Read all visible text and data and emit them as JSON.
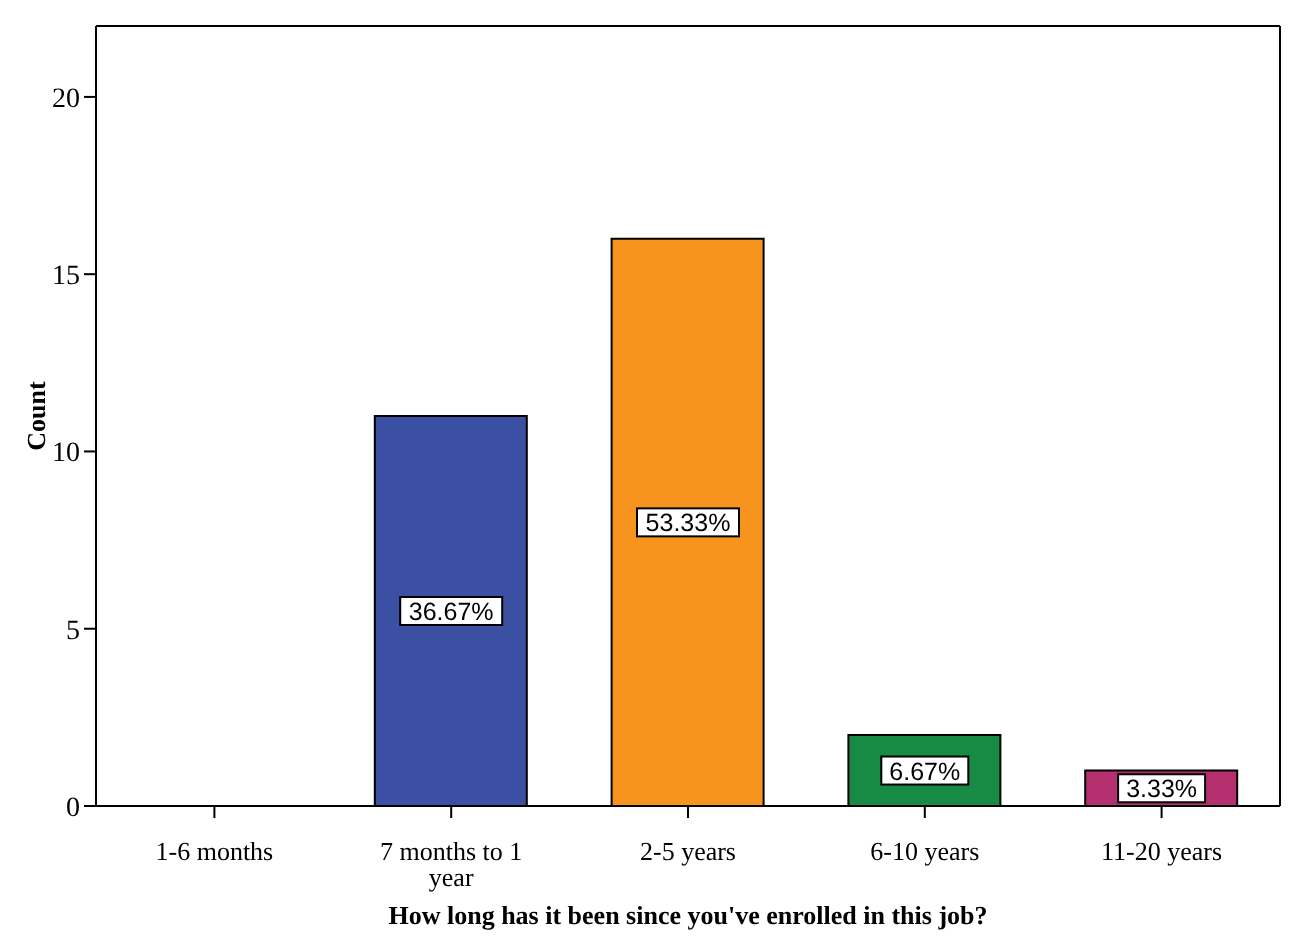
{
  "chart_data": {
    "type": "bar",
    "xlabel": "How long has it been since you've enrolled in this job?",
    "ylabel": "Count",
    "categories": [
      "1-6 months",
      "7 months to 1 year",
      "2-5 years",
      "6-10 years",
      "11-20 years"
    ],
    "values": [
      0,
      11,
      16,
      2,
      1
    ],
    "colors": [
      "#3b4fa3",
      "#3b4fa3",
      "#f7941d",
      "#178a44",
      "#b5306f"
    ],
    "annotations": [
      "36.67%",
      "53.33%",
      "6.67%",
      "3.33%"
    ],
    "ylim": [
      0,
      22
    ],
    "yticks": [
      0,
      5,
      10,
      15,
      20
    ],
    "grid": false,
    "legend": false
  }
}
